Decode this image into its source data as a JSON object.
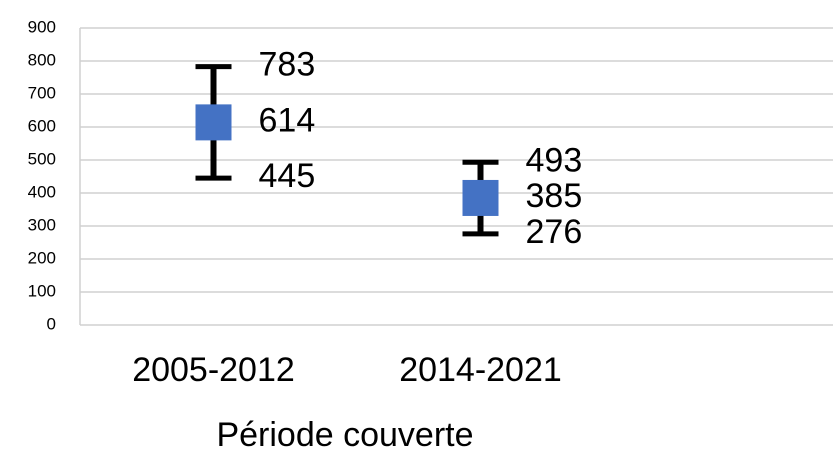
{
  "chart_data": {
    "type": "errorbar",
    "x_label": "Période couverte",
    "categories": [
      "2005-2012",
      "2014-2021"
    ],
    "values": [
      614,
      385
    ],
    "upper": [
      783,
      493
    ],
    "lower": [
      445,
      276
    ],
    "color": "#4472c4",
    "error_color": "#000000",
    "ylim": [
      0,
      900
    ],
    "yticks": [
      0,
      100,
      200,
      300,
      400,
      500,
      600,
      700,
      800,
      900
    ],
    "grid": true
  }
}
